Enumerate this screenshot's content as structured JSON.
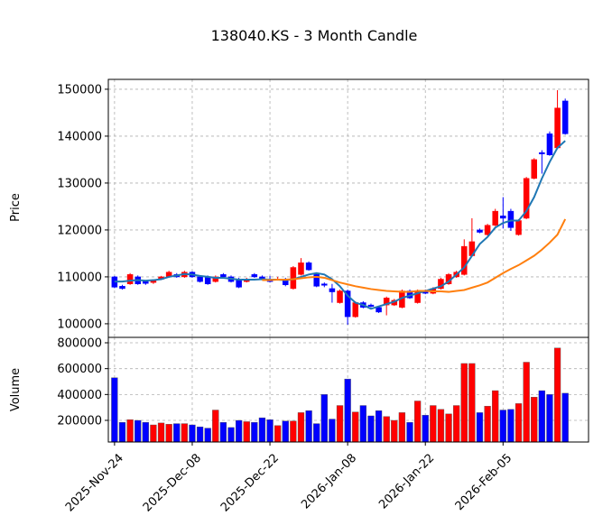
{
  "chart_data": [
    {
      "type": "candlestick",
      "title": "138040.KS - 3 Month Candle",
      "ylabel": "Price",
      "up_color": "#ff0000",
      "down_color": "#0000ff",
      "grid": true,
      "open": [
        110000,
        108000,
        108500,
        110000,
        109000,
        108800,
        109500,
        110000,
        110500,
        110000,
        111000,
        110000,
        110000,
        109000,
        110500,
        110000,
        109500,
        109000,
        110500,
        110000,
        109500,
        109500,
        109500,
        107500,
        110500,
        113000,
        110500,
        108500,
        107500,
        104500,
        107000,
        101500,
        104500,
        104000,
        103500,
        104000,
        104000,
        103500,
        107000,
        104500,
        107000,
        106500,
        107500,
        108500,
        110000,
        110500,
        114500,
        120000,
        119000,
        121000,
        123000,
        124000,
        119000,
        122500,
        131000,
        136500,
        140500,
        137500,
        147500
      ],
      "high": [
        110200,
        108300,
        110800,
        110300,
        109300,
        109400,
        110200,
        111300,
        110800,
        111300,
        111200,
        110300,
        110300,
        110300,
        110800,
        110300,
        109800,
        109800,
        110800,
        110300,
        110200,
        110000,
        109800,
        112300,
        114000,
        113300,
        110800,
        108800,
        108500,
        107300,
        107300,
        104800,
        104800,
        104300,
        103800,
        105800,
        105300,
        107300,
        107300,
        107300,
        107300,
        107800,
        109800,
        110800,
        111300,
        118000,
        122500,
        120300,
        121300,
        124500,
        127000,
        124500,
        122300,
        131300,
        135300,
        137000,
        141000,
        149800,
        148000
      ],
      "low": [
        107600,
        107300,
        108300,
        108300,
        108300,
        108500,
        109300,
        109800,
        109800,
        109800,
        109800,
        108800,
        108300,
        108800,
        109800,
        108800,
        107600,
        108800,
        109800,
        109300,
        108800,
        109200,
        108000,
        107300,
        110300,
        111300,
        107800,
        107800,
        104500,
        104300,
        99800,
        101300,
        103300,
        103500,
        102300,
        101800,
        103800,
        103300,
        105300,
        104300,
        106300,
        106300,
        107300,
        108300,
        109800,
        110300,
        114300,
        119300,
        118800,
        120800,
        120300,
        119800,
        118800,
        122300,
        130800,
        132000,
        135800,
        137300,
        140300
      ],
      "close": [
        107800,
        107500,
        110500,
        108500,
        108600,
        109200,
        110000,
        111000,
        110000,
        111000,
        110000,
        109000,
        108500,
        110000,
        110000,
        109000,
        107800,
        109500,
        110000,
        109500,
        109000,
        109500,
        108300,
        112000,
        113000,
        111500,
        108000,
        108200,
        106800,
        107000,
        101500,
        104500,
        103500,
        103700,
        102500,
        105500,
        105000,
        107000,
        105500,
        107000,
        106500,
        107500,
        109500,
        110500,
        111000,
        116500,
        117500,
        119500,
        121000,
        124000,
        122500,
        120500,
        122000,
        131000,
        135000,
        136200,
        136000,
        146000,
        140500
      ],
      "series": [
        {
          "color": "#1f77b4",
          "values": [
            109000,
            109000,
            109200,
            109300,
            109200,
            109300,
            109500,
            110000,
            110300,
            110600,
            110500,
            110200,
            110000,
            109800,
            109800,
            109600,
            109400,
            109400,
            109400,
            109500,
            109400,
            109400,
            109300,
            109500,
            110000,
            110500,
            110800,
            110500,
            109500,
            108000,
            106000,
            104500,
            104000,
            103200,
            103700,
            104200,
            104700,
            105500,
            106000,
            106500,
            107000,
            107500,
            108000,
            109000,
            110500,
            112000,
            114500,
            117000,
            118500,
            120500,
            121500,
            122000,
            122000,
            124000,
            127000,
            131000,
            134500,
            137500,
            139000
          ]
        },
        {
          "color": "#ff7f0e",
          "values": [
            null,
            null,
            null,
            null,
            null,
            null,
            null,
            null,
            null,
            null,
            null,
            null,
            null,
            null,
            null,
            null,
            null,
            null,
            null,
            109300,
            109300,
            109400,
            109400,
            109500,
            109700,
            109900,
            110000,
            109800,
            109300,
            108800,
            108400,
            108000,
            107700,
            107400,
            107200,
            107000,
            106900,
            106800,
            106800,
            107000,
            107000,
            106900,
            106900,
            106800,
            107000,
            107200,
            107700,
            108200,
            108800,
            109800,
            110800,
            111700,
            112500,
            113500,
            114500,
            115800,
            117300,
            119000,
            122300
          ]
        }
      ],
      "xlim": [
        -0.8,
        61
      ],
      "ylim": [
        97100,
        152100
      ],
      "xticks": [
        {
          "value": 0,
          "label": "2025-Nov-24"
        },
        {
          "value": 10,
          "label": "2025-Dec-08"
        },
        {
          "value": 20,
          "label": "2025-Dec-22"
        },
        {
          "value": 30,
          "label": "2026-Jan-08"
        },
        {
          "value": 40,
          "label": "2026-Jan-22"
        },
        {
          "value": 50,
          "label": "2026-Feb-05"
        }
      ],
      "yticks": [
        100000,
        110000,
        120000,
        130000,
        140000,
        150000
      ]
    },
    {
      "type": "bar",
      "ylabel": "Volume",
      "grid": true,
      "values": [
        530000,
        185000,
        205000,
        200000,
        185000,
        165000,
        180000,
        170000,
        175000,
        175000,
        165000,
        150000,
        140000,
        280000,
        185000,
        145000,
        200000,
        190000,
        185000,
        220000,
        205000,
        160000,
        195000,
        195000,
        260000,
        275000,
        175000,
        400000,
        210000,
        315000,
        520000,
        265000,
        315000,
        235000,
        275000,
        230000,
        200000,
        260000,
        185000,
        350000,
        240000,
        315000,
        285000,
        250000,
        315000,
        640000,
        640000,
        260000,
        310000,
        430000,
        280000,
        285000,
        330000,
        650000,
        380000,
        430000,
        400000,
        760000,
        410000
      ],
      "ylim": [
        32600,
        841900
      ],
      "yticks": [
        200000,
        400000,
        600000,
        800000
      ]
    }
  ]
}
